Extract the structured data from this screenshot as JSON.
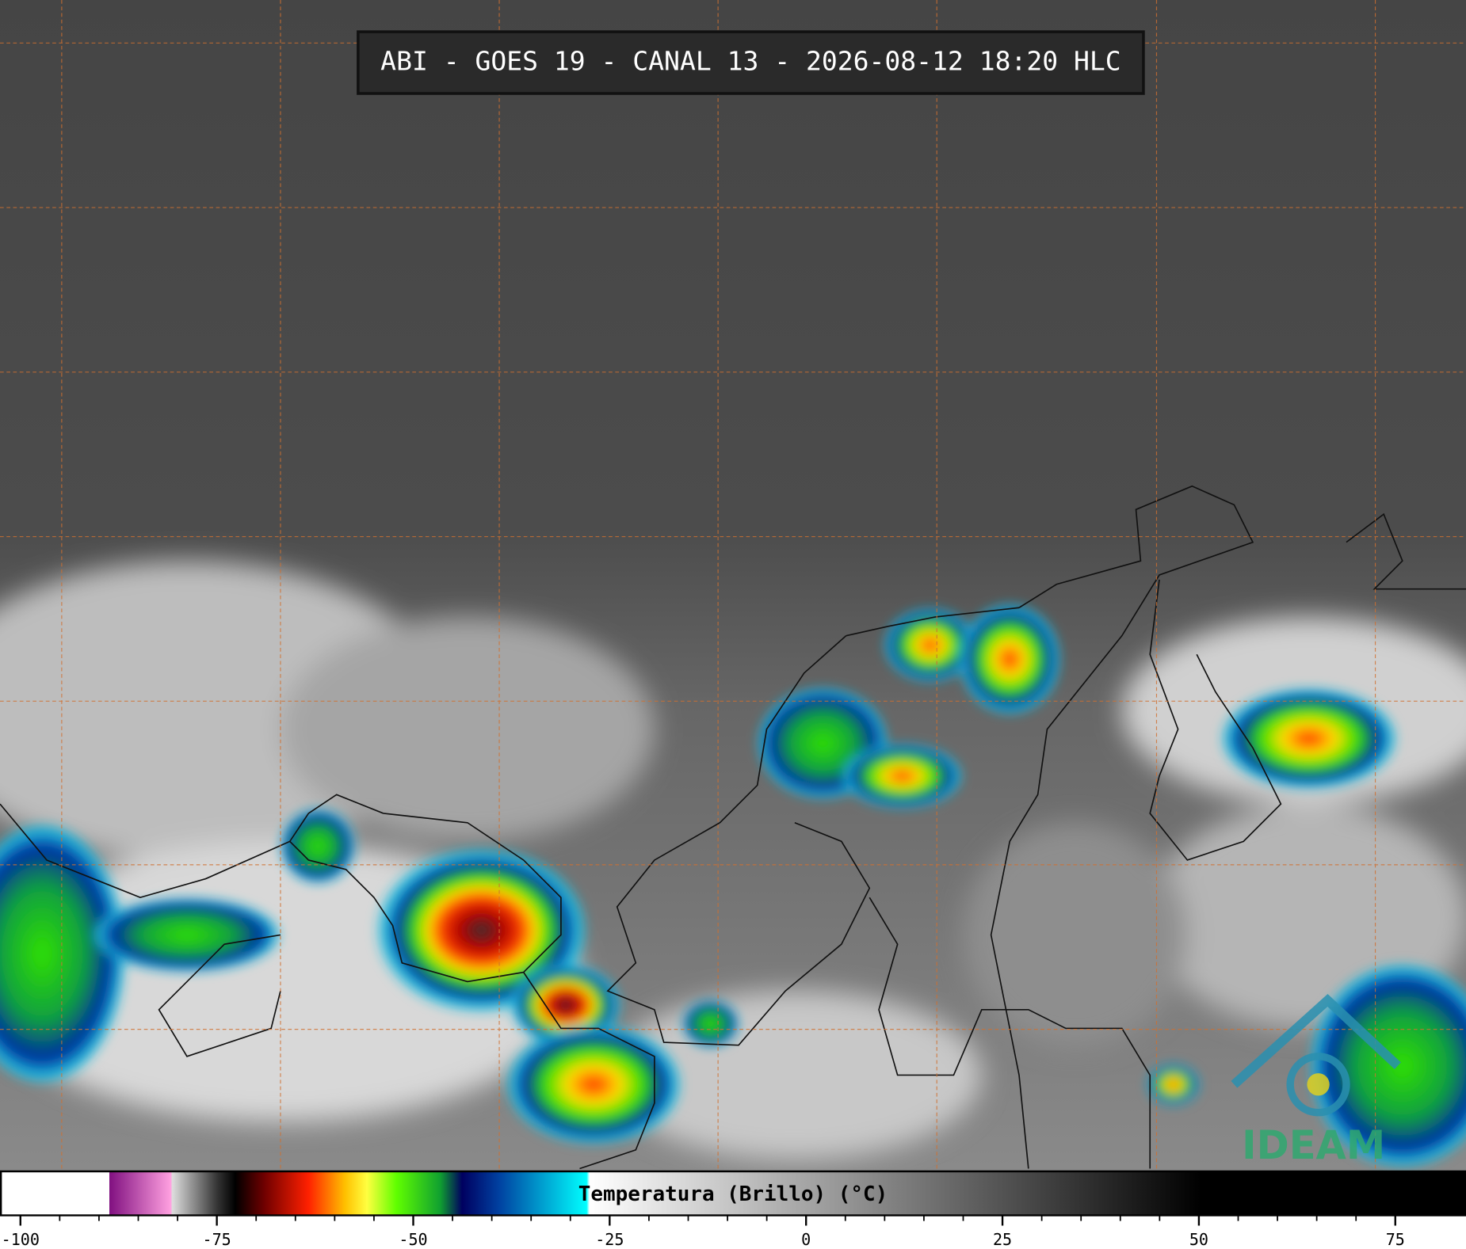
{
  "header": {
    "title": "ABI - GOES 19 - CANAL 13 - 2026-08-12 18:20 HLC"
  },
  "colorbar": {
    "label": "Temperatura (Brillo) (°C)",
    "range": [
      -102.6,
      84
    ],
    "ticks": [
      -100,
      -75,
      -50,
      -25,
      0,
      25,
      50,
      75
    ]
  },
  "logo": {
    "text": "IDEAM"
  }
}
